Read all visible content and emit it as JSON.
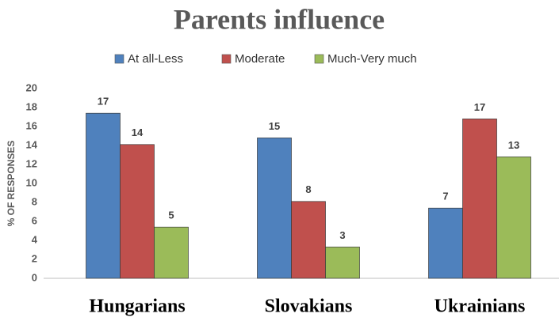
{
  "chart_data": {
    "type": "bar",
    "title": "Parents influence",
    "categories": [
      "Hungarians",
      "Slovakians",
      "Ukrainians"
    ],
    "y_label": "% OF RESPONSES",
    "series": [
      {
        "name": "At all-Less",
        "color": "#4f81bd",
        "values": [
          17.4,
          14.8,
          7.4
        ],
        "value_labels": [
          "17",
          "15",
          "7"
        ]
      },
      {
        "name": "Moderate",
        "color": "#c0504d",
        "values": [
          14.1,
          8.1,
          16.8
        ],
        "value_labels": [
          "14",
          "8",
          "17"
        ]
      },
      {
        "name": "Much-Very much",
        "color": "#9bbb59",
        "values": [
          5.4,
          3.3,
          12.8
        ],
        "value_labels": [
          "5",
          "3",
          "13"
        ]
      }
    ],
    "ylim": [
      0,
      20
    ],
    "yticks": [
      0,
      2,
      4,
      6,
      8,
      10,
      12,
      14,
      16,
      18,
      20
    ],
    "grid": false,
    "legend": "top"
  }
}
